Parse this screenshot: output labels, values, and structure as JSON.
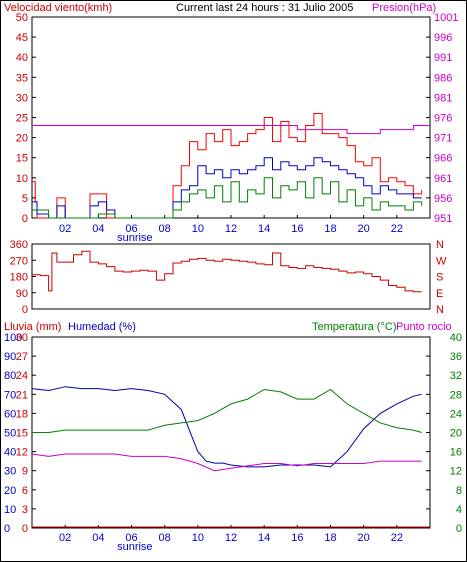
{
  "header": {
    "wind_title": "Velocidad viento(kmh)",
    "current_title": "Current last 24 hours : 31 Julio 2005",
    "pressure_title": "Presion(hPa)",
    "rain_title": "Lluvia (mm)",
    "humidity_title": "Humedad (%)",
    "temp_title": "Temperatura (°C)",
    "dew_title": "Punto rocio"
  },
  "colors": {
    "wind": "#ff0000",
    "wind_avg": "#0000cc",
    "gust": "#008000",
    "pressure": "#cc00cc",
    "direction": "#cc0000",
    "humidity": "#0000aa",
    "temperature": "#008000",
    "dewpoint": "#cc00cc",
    "rain": "#cc0000",
    "axis_left": "#cc0000",
    "axis_blue": "#0000cc",
    "axis_green": "#008000",
    "axis_pink": "#cc00cc"
  },
  "chart_data": [
    {
      "type": "line",
      "name": "wind_pressure",
      "x_ticks": [
        "02",
        "04",
        "06",
        "08",
        "10",
        "12",
        "14",
        "16",
        "18",
        "20",
        "22"
      ],
      "x_range_hours": [
        0,
        24
      ],
      "annotation": "sunrise",
      "y_left": {
        "label": "Velocidad viento(kmh)",
        "ticks": [
          0,
          5,
          10,
          15,
          20,
          25,
          30,
          35,
          40,
          45,
          50
        ],
        "range": [
          0,
          50
        ]
      },
      "y_right": {
        "label": "Presion(hPa)",
        "ticks": [
          951,
          956,
          961,
          966,
          971,
          976,
          981,
          986,
          991,
          996,
          1001
        ],
        "range": [
          951,
          1001
        ]
      },
      "series": [
        {
          "name": "wind_max",
          "x": [
            0,
            0.2,
            0.3,
            1,
            1.5,
            2,
            2.5,
            3,
            3.5,
            4,
            4.5,
            5,
            5.5,
            6,
            6.5,
            7,
            7.5,
            8,
            8.5,
            9,
            9.5,
            10,
            10.5,
            11,
            11.5,
            12,
            12.5,
            13,
            13.5,
            14,
            14.5,
            15,
            15.5,
            16,
            16.5,
            17,
            17.5,
            18,
            18.5,
            19,
            19.5,
            20,
            20.5,
            21,
            21.5,
            22,
            22.5,
            23,
            23.5
          ],
          "values": [
            9,
            4,
            0,
            0,
            5,
            0,
            0,
            0,
            6,
            6,
            0,
            0,
            0,
            0,
            0,
            0,
            0,
            0,
            8,
            13,
            19,
            17,
            21,
            19,
            22,
            18,
            19,
            21,
            22,
            25,
            19,
            24,
            20,
            19,
            23,
            26,
            21,
            21,
            20,
            18,
            14,
            13,
            15,
            9,
            10,
            9,
            8,
            6,
            7
          ]
        },
        {
          "name": "wind_avg",
          "x": [
            0,
            0.3,
            1,
            1.5,
            2,
            3,
            3.5,
            4,
            4.5,
            5,
            8,
            8.5,
            9,
            9.5,
            10,
            10.5,
            11,
            11.5,
            12,
            12.5,
            13,
            13.5,
            14,
            14.5,
            15,
            15.5,
            16,
            16.5,
            17,
            17.5,
            18,
            18.5,
            19,
            19.5,
            20,
            20.5,
            21,
            21.5,
            22,
            22.5,
            23,
            23.5
          ],
          "values": [
            4,
            1,
            0,
            3,
            0,
            0,
            3,
            4,
            2,
            0,
            0,
            4,
            7,
            8,
            13,
            11,
            12,
            10,
            12,
            11,
            12,
            13,
            15,
            12,
            14,
            13,
            12,
            13,
            15,
            14,
            13,
            12,
            11,
            10,
            8,
            6,
            8,
            7,
            6,
            6,
            5,
            5
          ]
        },
        {
          "name": "wind_gust_min",
          "x": [
            0,
            1,
            2,
            3,
            4,
            5,
            8,
            8.5,
            9,
            9.5,
            10,
            10.5,
            11,
            11.5,
            12,
            12.5,
            13,
            13.5,
            14,
            14.5,
            15,
            15.5,
            16,
            16.5,
            17,
            17.5,
            18,
            18.5,
            19,
            19.5,
            20,
            20.5,
            21,
            21.5,
            22,
            22.5,
            23,
            23.5
          ],
          "values": [
            2,
            0,
            0,
            0,
            1,
            0,
            0,
            2,
            4,
            6,
            7,
            5,
            8,
            4,
            9,
            4,
            7,
            6,
            10,
            5,
            8,
            7,
            9,
            5,
            10,
            6,
            9,
            4,
            7,
            3,
            5,
            2,
            4,
            3,
            3,
            2,
            4,
            3
          ]
        },
        {
          "name": "pressure",
          "x": [
            0,
            6,
            8,
            10,
            12,
            14,
            16,
            18,
            19,
            20,
            21,
            22,
            23,
            24
          ],
          "values": [
            974,
            974,
            974,
            974,
            974,
            974,
            973,
            973,
            972,
            972,
            973,
            973,
            974,
            974
          ]
        }
      ]
    },
    {
      "type": "line",
      "name": "wind_direction",
      "y_left": {
        "ticks": [
          0,
          90,
          180,
          270,
          360
        ],
        "range": [
          0,
          360
        ]
      },
      "y_right": {
        "ticks": [
          "N",
          "W",
          "S",
          "E",
          "N"
        ]
      },
      "series": [
        {
          "name": "direction",
          "x": [
            0,
            0.5,
            1,
            1.2,
            1.5,
            2,
            2.5,
            3,
            3.5,
            4,
            4.5,
            5,
            5.5,
            6,
            6.5,
            7,
            7.5,
            8,
            8.5,
            9,
            9.5,
            10,
            10.5,
            11,
            11.5,
            12,
            12.5,
            13,
            13.5,
            14,
            14.5,
            15,
            15.5,
            16,
            16.5,
            17,
            17.5,
            18,
            18.5,
            19,
            19.5,
            20,
            20.5,
            21,
            21.5,
            22,
            22.5,
            23,
            23.5
          ],
          "values": [
            190,
            185,
            100,
            310,
            260,
            260,
            300,
            320,
            260,
            250,
            235,
            210,
            205,
            210,
            215,
            210,
            160,
            195,
            255,
            265,
            275,
            280,
            270,
            265,
            275,
            270,
            265,
            260,
            250,
            245,
            310,
            240,
            230,
            225,
            240,
            230,
            225,
            220,
            210,
            200,
            205,
            195,
            180,
            160,
            130,
            120,
            100,
            95,
            95
          ]
        }
      ]
    },
    {
      "type": "line",
      "name": "humidity_temperature",
      "annotation": "sunrise",
      "y_left_rain": {
        "label": "Lluvia (mm)",
        "ticks": [
          0,
          10,
          20,
          30,
          40,
          50,
          60,
          70,
          80,
          90,
          100
        ],
        "range": [
          0,
          100
        ]
      },
      "y_left_hum": {
        "label": "Humedad (%)",
        "ticks": [
          0,
          3,
          6,
          9,
          12,
          15,
          18,
          21,
          24,
          27,
          30
        ],
        "range": [
          0,
          30
        ]
      },
      "y_right": {
        "label": "Temperatura (°C)",
        "ticks": [
          0,
          4,
          8,
          12,
          16,
          20,
          24,
          28,
          32,
          36,
          40
        ],
        "range": [
          0,
          40
        ]
      },
      "series": [
        {
          "name": "humidity",
          "x": [
            0,
            1,
            2,
            3,
            4,
            5,
            6,
            7,
            8,
            9,
            10,
            10.5,
            11,
            11.5,
            12,
            13,
            14,
            15,
            16,
            17,
            18,
            19,
            20,
            21,
            22,
            23,
            23.5
          ],
          "values": [
            73,
            72,
            74,
            73,
            73,
            72,
            73,
            72,
            70,
            62,
            40,
            35,
            34,
            34,
            33,
            32,
            32,
            33,
            33,
            33,
            32,
            40,
            52,
            60,
            65,
            69,
            70
          ]
        },
        {
          "name": "temperature",
          "x": [
            0,
            1,
            2,
            3,
            4,
            5,
            6,
            7,
            8,
            9,
            10,
            11,
            12,
            13,
            14,
            15,
            16,
            17,
            18,
            19,
            20,
            21,
            22,
            23,
            23.5
          ],
          "values": [
            20,
            20,
            20.5,
            20.5,
            20.5,
            20.5,
            20.5,
            20.5,
            21.5,
            22,
            22.5,
            24,
            26,
            27,
            29,
            28.5,
            27,
            27,
            29,
            26,
            24,
            22,
            21,
            20.5,
            20
          ]
        },
        {
          "name": "dewpoint",
          "x": [
            0,
            1,
            2,
            3,
            4,
            5,
            6,
            7,
            8,
            9,
            10,
            11,
            12,
            13,
            14,
            15,
            16,
            17,
            18,
            19,
            20,
            21,
            22,
            23,
            23.5
          ],
          "values": [
            15.5,
            15,
            15.5,
            15.5,
            15.5,
            15.5,
            15,
            15,
            15,
            14.5,
            13.5,
            12,
            12.5,
            13,
            13.5,
            13.5,
            13,
            13.5,
            13.5,
            13.5,
            13.5,
            14,
            14,
            14,
            14
          ]
        },
        {
          "name": "rain",
          "x": [
            0,
            24
          ],
          "values": [
            0,
            0
          ]
        }
      ]
    }
  ]
}
